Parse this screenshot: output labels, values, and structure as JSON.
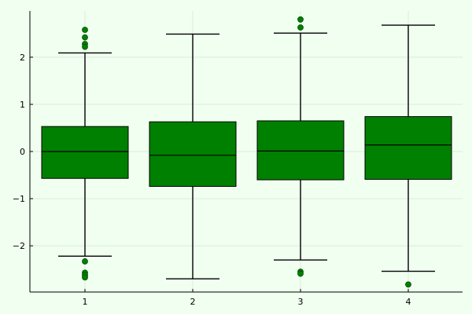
{
  "chart_data": {
    "type": "box",
    "title": "",
    "xlabel": "",
    "ylabel": "",
    "categories": [
      "1",
      "2",
      "3",
      "4"
    ],
    "yticks": [
      {
        "value": 2,
        "label": "2"
      },
      {
        "value": 1,
        "label": "1"
      },
      {
        "value": 0,
        "label": "0"
      },
      {
        "value": -1,
        "label": "−1"
      },
      {
        "value": -2,
        "label": "−2"
      }
    ],
    "ylim": [
      -2.98,
      2.98
    ],
    "grid": true,
    "box_color": "#008000",
    "outlier_color": "#008000",
    "line_color": "#000000",
    "boxes": [
      {
        "category": "1",
        "whisker_low": -2.22,
        "q1": -0.57,
        "median": 0.0,
        "q3": 0.53,
        "whisker_high": 2.09,
        "outliers": [
          2.58,
          2.42,
          2.28,
          2.22,
          -2.33,
          -2.57,
          -2.62,
          -2.67
        ]
      },
      {
        "category": "2",
        "whisker_low": -2.7,
        "q1": -0.74,
        "median": -0.08,
        "q3": 0.63,
        "whisker_high": 2.49,
        "outliers": []
      },
      {
        "category": "3",
        "whisker_low": -2.3,
        "q1": -0.6,
        "median": 0.01,
        "q3": 0.65,
        "whisker_high": 2.51,
        "outliers": [
          2.8,
          2.63,
          -2.55,
          -2.59
        ]
      },
      {
        "category": "4",
        "whisker_low": -2.54,
        "q1": -0.59,
        "median": 0.14,
        "q3": 0.74,
        "whisker_high": 2.68,
        "outliers": [
          -2.82
        ]
      }
    ]
  }
}
